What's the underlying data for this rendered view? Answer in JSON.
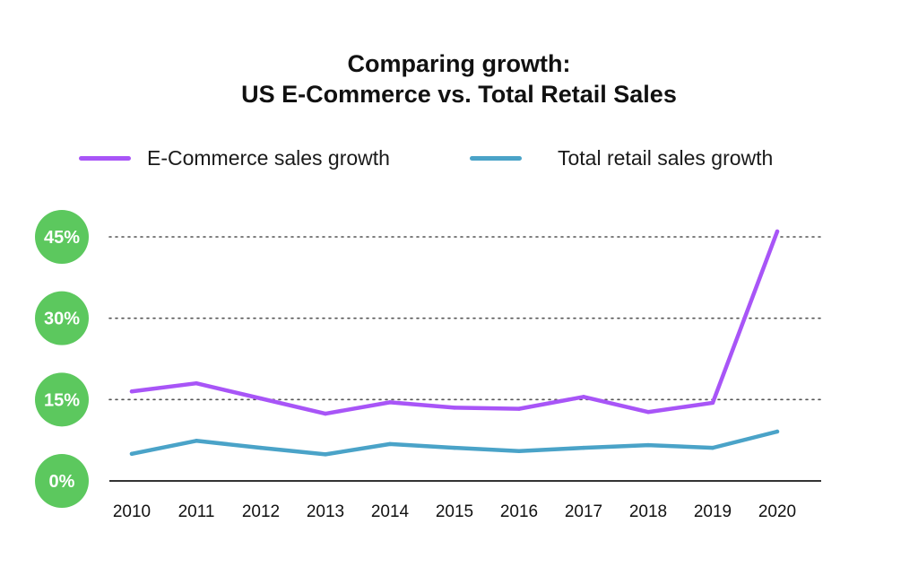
{
  "chart_data": {
    "type": "line",
    "title": [
      "Comparing growth:",
      "US E-Commerce vs. Total Retail Sales"
    ],
    "categories": [
      "2010",
      "2011",
      "2012",
      "2013",
      "2014",
      "2015",
      "2016",
      "2017",
      "2018",
      "2019",
      "2020"
    ],
    "series": [
      {
        "name": "E-Commerce sales growth",
        "color": "#a855f7",
        "values": [
          16.5,
          18.0,
          15.2,
          12.4,
          14.5,
          13.5,
          13.3,
          15.5,
          12.7,
          14.4,
          46.0
        ]
      },
      {
        "name": "Total retail sales growth",
        "color": "#4aa3c8",
        "values": [
          5.0,
          7.4,
          6.1,
          4.9,
          6.8,
          6.1,
          5.5,
          6.1,
          6.6,
          6.1,
          9.1
        ]
      }
    ],
    "ylim": [
      0,
      45
    ],
    "yticks": [
      {
        "value": 0,
        "label": "0%"
      },
      {
        "value": 15,
        "label": "15%"
      },
      {
        "value": 30,
        "label": "30%"
      },
      {
        "value": 45,
        "label": "45%"
      }
    ],
    "tick_badge_color": "#5cc85e",
    "gridlines": "dotted",
    "legend_position": "top"
  }
}
